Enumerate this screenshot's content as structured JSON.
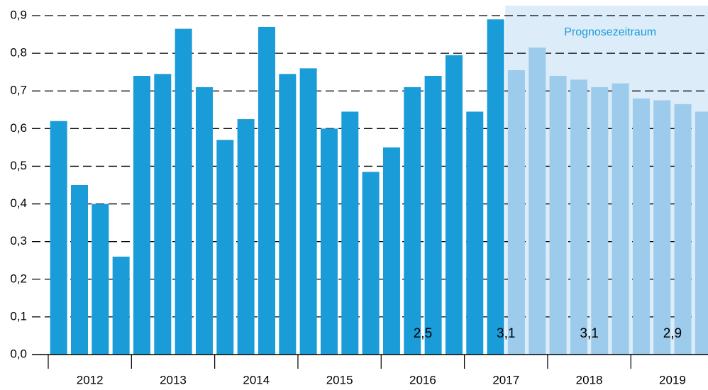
{
  "chart_data": {
    "type": "bar",
    "categories": [
      null,
      null,
      null,
      null,
      null,
      null,
      null,
      null,
      null,
      null,
      null,
      null,
      null,
      null,
      null,
      null,
      null,
      null,
      null,
      null,
      null,
      null,
      null,
      null,
      null,
      null,
      null,
      null,
      null,
      null,
      null,
      null
    ],
    "values": [
      0.62,
      0.45,
      0.4,
      0.26,
      0.74,
      0.745,
      0.865,
      0.71,
      0.57,
      0.625,
      0.87,
      0.745,
      0.76,
      0.6,
      0.645,
      0.485,
      0.55,
      0.71,
      0.74,
      0.795,
      0.645,
      0.89,
      0.755,
      0.815,
      0.74,
      0.73,
      0.71,
      0.72,
      0.68,
      0.675,
      0.665,
      0.645
    ],
    "colors": [
      "#1a9cd8",
      "#1a9cd8",
      "#1a9cd8",
      "#1a9cd8",
      "#1a9cd8",
      "#1a9cd8",
      "#1a9cd8",
      "#1a9cd8",
      "#1a9cd8",
      "#1a9cd8",
      "#1a9cd8",
      "#1a9cd8",
      "#1a9cd8",
      "#1a9cd8",
      "#1a9cd8",
      "#1a9cd8",
      "#1a9cd8",
      "#1a9cd8",
      "#1a9cd8",
      "#1a9cd8",
      "#1a9cd8",
      "#1a9cd8",
      "#9ccbeb",
      "#9ccbeb",
      "#9ccbeb",
      "#9ccbeb",
      "#9ccbeb",
      "#9ccbeb",
      "#9ccbeb",
      "#9ccbeb",
      "#9ccbeb",
      "#9ccbeb"
    ],
    "year_labels": [
      "2012",
      "2013",
      "2014",
      "2015",
      "2016",
      "2017",
      "2018",
      "2019"
    ],
    "forecast_label": "Prognosezeitraum",
    "annotations": [
      "2,5",
      "3,1",
      "3,1",
      "2,9"
    ],
    "ylim": [
      0,
      0.9
    ],
    "yticks": [
      {
        "value": 0,
        "label": "0,0"
      },
      {
        "value": 0.1,
        "label": "0,1"
      },
      {
        "value": 0.2,
        "label": "0,2"
      },
      {
        "value": 0.3,
        "label": "0,3"
      },
      {
        "value": 0.4,
        "label": "0,4"
      },
      {
        "value": 0.5,
        "label": "0,5"
      },
      {
        "value": 0.6,
        "label": "0,6"
      },
      {
        "value": 0.7,
        "label": "0,7"
      },
      {
        "value": 0.8,
        "label": "0,8"
      },
      {
        "value": 0.9,
        "label": "0,9"
      }
    ],
    "grid": true
  }
}
